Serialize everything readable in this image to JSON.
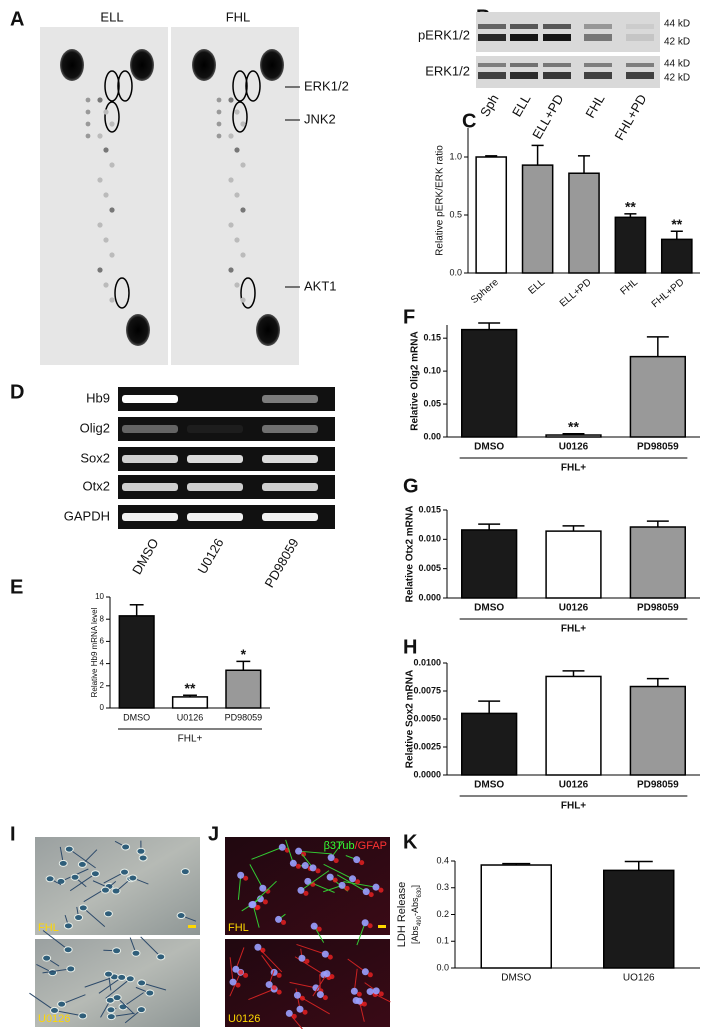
{
  "panels": {
    "A": {
      "label": "A",
      "columns": [
        "ELL",
        "FHL"
      ],
      "spots": [
        "ERK1/2",
        "JNK2",
        "AKT1"
      ]
    },
    "B": {
      "label": "B",
      "rows": [
        "pERK1/2",
        "ERK1/2"
      ],
      "sizes": [
        [
          "44 kD",
          "42 kD"
        ],
        [
          "44 kD",
          "42 kD"
        ]
      ],
      "lanes": [
        "Sph",
        "ELL",
        "ELL+PD",
        "FHL",
        "FHL+PD"
      ]
    },
    "D": {
      "label": "D",
      "genes": [
        "Hb9",
        "Olig2",
        "Sox2",
        "Otx2",
        "GAPDH"
      ],
      "lanes": [
        "DMSO",
        "U0126",
        "PD98059"
      ]
    },
    "I": {
      "label": "I",
      "conditions": [
        "FHL",
        "U0126"
      ]
    },
    "J": {
      "label": "J",
      "conditions": [
        "FHL",
        "U0126"
      ],
      "stains": [
        "β3Tub",
        "/GFAP"
      ]
    }
  },
  "chart_data": [
    {
      "type": "bar",
      "label": "C",
      "ylabel": "Relative pERK/ERK ratio",
      "categories": [
        "Sphere",
        "ELL",
        "ELL+PD",
        "FHL",
        "FHL+PD"
      ],
      "values": [
        1.0,
        0.93,
        0.86,
        0.48,
        0.29
      ],
      "errors": [
        0.01,
        0.17,
        0.15,
        0.03,
        0.07
      ],
      "annotations": [
        null,
        null,
        null,
        "**",
        "**"
      ],
      "colors": [
        "#ffffff",
        "#999999",
        "#999999",
        "#1a1a1a",
        "#1a1a1a"
      ],
      "ylim": [
        0,
        1.25
      ],
      "yticks": [
        {
          "value": 0,
          "label": "0.0"
        },
        {
          "value": 0.5,
          "label": "0.5"
        },
        {
          "value": 1,
          "label": "1.0"
        }
      ]
    },
    {
      "type": "bar",
      "label": "E",
      "ylabel": "Relative Hb9 mRNA level",
      "group_label": "FHL+",
      "categories": [
        "DMSO",
        "U0126",
        "PD98059"
      ],
      "values": [
        8.3,
        1.0,
        3.4
      ],
      "errors": [
        1.0,
        0.15,
        0.8
      ],
      "annotations": [
        null,
        "**",
        "*"
      ],
      "colors": [
        "#1a1a1a",
        "#ffffff",
        "#999999"
      ],
      "ylim": [
        0,
        10
      ],
      "yticks": [
        0,
        2,
        4,
        6,
        8,
        10
      ]
    },
    {
      "type": "bar",
      "label": "F",
      "ylabel": "Relative Olig2 mRNA",
      "group_label": "FHL+",
      "categories": [
        "DMSO",
        "U0126",
        "PD98059"
      ],
      "values": [
        0.163,
        0.003,
        0.122
      ],
      "errors": [
        0.01,
        0.002,
        0.03
      ],
      "annotations": [
        null,
        "**",
        null
      ],
      "colors": [
        "#1a1a1a",
        "#ffffff",
        "#999999"
      ],
      "ylim": [
        0,
        0.17
      ],
      "yticks": [
        {
          "value": 0,
          "label": "0.00"
        },
        {
          "value": 0.05,
          "label": "0.05"
        },
        {
          "value": 0.1,
          "label": "0.10"
        },
        {
          "value": 0.15,
          "label": "0.15"
        }
      ]
    },
    {
      "type": "bar",
      "label": "G",
      "ylabel": "Relative Otx2 mRNA",
      "group_label": "FHL+",
      "categories": [
        "DMSO",
        "U0126",
        "PD98059"
      ],
      "values": [
        0.0116,
        0.0114,
        0.0121
      ],
      "errors": [
        0.001,
        0.0009,
        0.001
      ],
      "colors": [
        "#1a1a1a",
        "#ffffff",
        "#999999"
      ],
      "ylim": [
        0,
        0.015
      ],
      "yticks": [
        {
          "value": 0,
          "label": "0.000"
        },
        {
          "value": 0.005,
          "label": "0.005"
        },
        {
          "value": 0.01,
          "label": "0.010"
        },
        {
          "value": 0.015,
          "label": "0.015"
        }
      ]
    },
    {
      "type": "bar",
      "label": "H",
      "ylabel": "Relative Sox2 mRNA",
      "group_label": "FHL+",
      "categories": [
        "DMSO",
        "U0126",
        "PD98059"
      ],
      "values": [
        0.0055,
        0.0088,
        0.0079
      ],
      "errors": [
        0.0011,
        0.0005,
        0.0007
      ],
      "colors": [
        "#1a1a1a",
        "#ffffff",
        "#999999"
      ],
      "ylim": [
        0,
        0.01
      ],
      "yticks": [
        {
          "value": 0,
          "label": "0.0000"
        },
        {
          "value": 0.0025,
          "label": "0.0025"
        },
        {
          "value": 0.005,
          "label": "0.0050"
        },
        {
          "value": 0.0075,
          "label": "0.0075"
        },
        {
          "value": 0.01,
          "label": "0.0100"
        }
      ]
    },
    {
      "type": "bar",
      "label": "K",
      "ylabel": "LDH Release",
      "ylabel_units": [
        "[Abs",
        "490",
        "-Abs",
        "630",
        "]"
      ],
      "categories": [
        "DMSO",
        "UO126"
      ],
      "values": [
        0.385,
        0.365
      ],
      "errors": [
        0.005,
        0.033
      ],
      "colors": [
        "#ffffff",
        "#1a1a1a"
      ],
      "ylim": [
        0,
        0.4
      ],
      "yticks": [
        {
          "value": 0,
          "label": "0.0"
        },
        {
          "value": 0.1,
          "label": "0.1"
        },
        {
          "value": 0.2,
          "label": "0.2"
        },
        {
          "value": 0.3,
          "label": "0.3"
        },
        {
          "value": 0.4,
          "label": "0.4"
        }
      ]
    }
  ]
}
